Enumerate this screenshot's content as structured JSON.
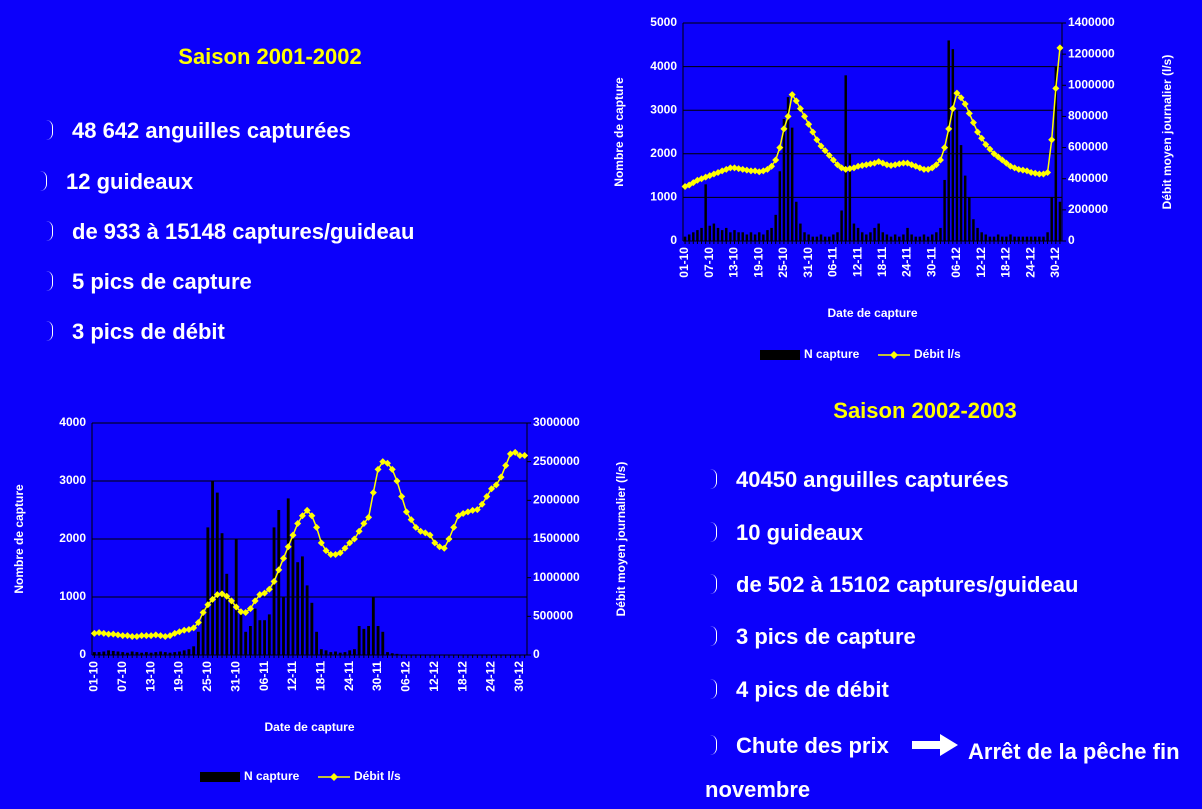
{
  "slide": {
    "left_text": {
      "title": "Saison 2001-2002",
      "bullets": [
        "48 642 anguilles capturées",
        "12 guideaux",
        "de 933 à 15148 captures/guideau",
        "5 pics de capture",
        "3 pics de débit"
      ]
    },
    "right_text": {
      "title": "Saison 2002-2003",
      "bullets": [
        "40450 anguilles capturées",
        "10 guideaux",
        "de 502 à 15102 captures/guideau",
        "3 pics de capture",
        "4 pics de débit"
      ],
      "last_bullet": {
        "before": "Chute des prix",
        "after": "Arrêt de la pêche fin novembre"
      }
    }
  },
  "chart_data": [
    {
      "type": "combo",
      "x_label": "Date de capture",
      "y_label": "Nombre de capture",
      "y2_label": "Débit moyen journalier (l/s)",
      "grid": true,
      "legend": "bottom",
      "categories": [
        "01-10",
        null,
        null,
        null,
        null,
        null,
        "07-10",
        null,
        null,
        null,
        null,
        null,
        "13-10",
        null,
        null,
        null,
        null,
        null,
        "19-10",
        null,
        null,
        null,
        null,
        null,
        "25-10",
        null,
        null,
        null,
        null,
        null,
        "31-10",
        null,
        null,
        null,
        null,
        null,
        "06-11",
        null,
        null,
        null,
        null,
        null,
        "12-11",
        null,
        null,
        null,
        null,
        null,
        "18-11",
        null,
        null,
        null,
        null,
        null,
        "24-11",
        null,
        null,
        null,
        null,
        null,
        "30-11",
        null,
        null,
        null,
        null,
        null,
        "06-12",
        null,
        null,
        null,
        null,
        null,
        "12-12",
        null,
        null,
        null,
        null,
        null,
        "18-12",
        null,
        null,
        null,
        null,
        null,
        "24-12",
        null,
        null,
        null,
        null,
        null,
        "30-12",
        null
      ],
      "ylim": [
        0,
        5000
      ],
      "yticks": [
        0,
        1000,
        2000,
        3000,
        4000,
        5000
      ],
      "y2lim": [
        0,
        1400000
      ],
      "y2ticks": [
        0,
        200000,
        400000,
        600000,
        800000,
        1000000,
        1200000,
        1400000
      ],
      "series": [
        {
          "name": "N capture",
          "color": "#000000",
          "type": "bar",
          "values": [
            100,
            150,
            200,
            250,
            300,
            1300,
            350,
            400,
            300,
            250,
            300,
            200,
            250,
            200,
            200,
            150,
            200,
            150,
            200,
            150,
            250,
            300,
            600,
            1600,
            2800,
            3300,
            2600,
            900,
            400,
            200,
            150,
            100,
            100,
            150,
            100,
            100,
            150,
            200,
            700,
            3800,
            2000,
            400,
            300,
            200,
            150,
            200,
            300,
            400,
            200,
            150,
            100,
            150,
            100,
            150,
            300,
            150,
            100,
            100,
            150,
            100,
            150,
            200,
            300,
            1400,
            4600,
            4400,
            3000,
            2200,
            1500,
            1000,
            500,
            300,
            200,
            150,
            100,
            100,
            150,
            100,
            100,
            150,
            100,
            100,
            100,
            100,
            100,
            100,
            100,
            100,
            200,
            1000,
            4000,
            900
          ]
        },
        {
          "name": "Débit l/s",
          "color": "#ffff00",
          "type": "line",
          "axis": "y2",
          "values": [
            350000,
            360000,
            375000,
            390000,
            400000,
            410000,
            420000,
            430000,
            440000,
            450000,
            460000,
            470000,
            470000,
            465000,
            460000,
            455000,
            450000,
            450000,
            445000,
            450000,
            460000,
            480000,
            520000,
            600000,
            720000,
            800000,
            940000,
            900000,
            850000,
            800000,
            750000,
            700000,
            650000,
            610000,
            580000,
            550000,
            520000,
            490000,
            470000,
            460000,
            465000,
            470000,
            480000,
            485000,
            490000,
            495000,
            500000,
            510000,
            500000,
            490000,
            485000,
            490000,
            495000,
            500000,
            500000,
            490000,
            480000,
            470000,
            460000,
            460000,
            470000,
            490000,
            520000,
            600000,
            720000,
            850000,
            950000,
            920000,
            880000,
            820000,
            760000,
            700000,
            660000,
            620000,
            590000,
            560000,
            540000,
            520000,
            500000,
            480000,
            470000,
            460000,
            455000,
            450000,
            440000,
            435000,
            430000,
            430000,
            440000,
            650000,
            980000,
            1240000
          ]
        }
      ]
    },
    {
      "type": "combo",
      "x_label": "Date de capture",
      "y_label": "Nombre de capture",
      "y2_label": "Débit moyen journalier (l/s)",
      "grid": true,
      "legend": "bottom",
      "categories": [
        "01-10",
        null,
        null,
        null,
        null,
        null,
        "07-10",
        null,
        null,
        null,
        null,
        null,
        "13-10",
        null,
        null,
        null,
        null,
        null,
        "19-10",
        null,
        null,
        null,
        null,
        null,
        "25-10",
        null,
        null,
        null,
        null,
        null,
        "31-10",
        null,
        null,
        null,
        null,
        null,
        "06-11",
        null,
        null,
        null,
        null,
        null,
        "12-11",
        null,
        null,
        null,
        null,
        null,
        "18-11",
        null,
        null,
        null,
        null,
        null,
        "24-11",
        null,
        null,
        null,
        null,
        null,
        "30-11",
        null,
        null,
        null,
        null,
        null,
        "06-12",
        null,
        null,
        null,
        null,
        null,
        "12-12",
        null,
        null,
        null,
        null,
        null,
        "18-12",
        null,
        null,
        null,
        null,
        null,
        "24-12",
        null,
        null,
        null,
        null,
        null,
        "30-12",
        null
      ],
      "ylim": [
        0,
        4000
      ],
      "yticks": [
        0,
        1000,
        2000,
        3000,
        4000
      ],
      "y2lim": [
        0,
        3000000
      ],
      "y2ticks": [
        0,
        500000,
        1000000,
        1500000,
        2000000,
        2500000,
        3000000
      ],
      "series": [
        {
          "name": "N capture",
          "color": "#000000",
          "type": "bar",
          "values": [
            50,
            50,
            60,
            80,
            70,
            60,
            50,
            40,
            60,
            50,
            40,
            50,
            40,
            50,
            60,
            50,
            40,
            50,
            60,
            80,
            100,
            150,
            400,
            800,
            2200,
            3000,
            2800,
            2100,
            1400,
            900,
            2000,
            700,
            400,
            500,
            800,
            600,
            600,
            700,
            2200,
            2500,
            1000,
            2700,
            2000,
            1600,
            1700,
            1200,
            900,
            400,
            100,
            80,
            50,
            60,
            40,
            50,
            80,
            100,
            500,
            450,
            500,
            1000,
            500,
            400,
            50,
            30,
            20,
            10,
            0,
            0,
            0,
            0,
            0,
            0,
            0,
            0,
            0,
            0,
            0,
            0,
            0,
            0,
            0,
            0,
            0,
            0,
            0,
            0,
            0,
            0,
            0,
            0,
            0,
            0
          ]
        },
        {
          "name": "Débit l/s",
          "color": "#ffff00",
          "type": "line",
          "axis": "y2",
          "values": [
            280000,
            290000,
            280000,
            270000,
            270000,
            260000,
            250000,
            250000,
            240000,
            240000,
            250000,
            250000,
            250000,
            260000,
            250000,
            240000,
            250000,
            280000,
            300000,
            320000,
            330000,
            350000,
            420000,
            550000,
            650000,
            720000,
            780000,
            790000,
            760000,
            700000,
            620000,
            560000,
            550000,
            600000,
            700000,
            780000,
            800000,
            850000,
            950000,
            1100000,
            1250000,
            1400000,
            1550000,
            1700000,
            1800000,
            1870000,
            1800000,
            1650000,
            1450000,
            1350000,
            1300000,
            1300000,
            1320000,
            1380000,
            1450000,
            1500000,
            1600000,
            1700000,
            1780000,
            2100000,
            2400000,
            2500000,
            2480000,
            2400000,
            2250000,
            2050000,
            1850000,
            1750000,
            1650000,
            1600000,
            1580000,
            1550000,
            1450000,
            1400000,
            1380000,
            1500000,
            1650000,
            1800000,
            1830000,
            1850000,
            1870000,
            1880000,
            1950000,
            2050000,
            2150000,
            2200000,
            2300000,
            2450000,
            2600000,
            2620000,
            2580000,
            2580000
          ]
        }
      ]
    }
  ]
}
